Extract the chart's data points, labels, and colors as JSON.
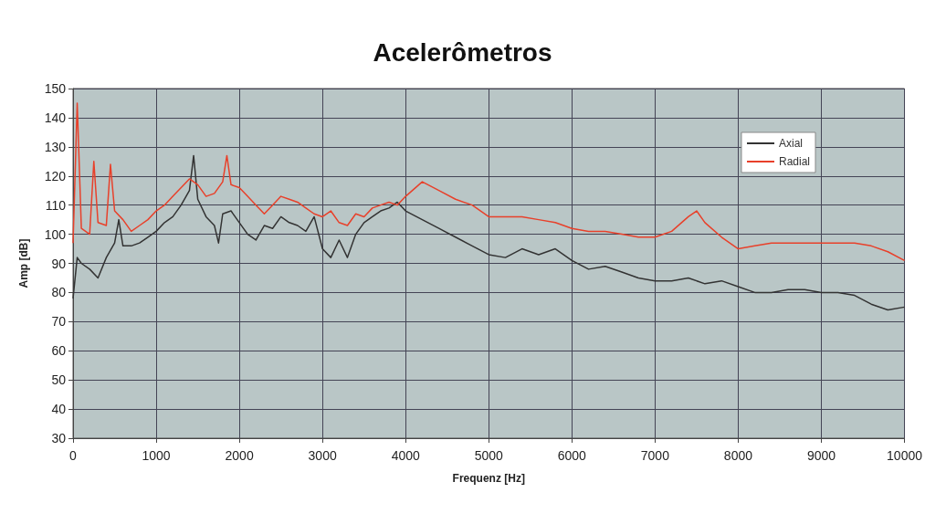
{
  "chart_data": {
    "type": "line",
    "title": "Acelerômetros",
    "xlabel": "Frequenz [Hz]",
    "ylabel": "Amp [dB]",
    "xlim": [
      0,
      10000
    ],
    "xticks": [
      0,
      1000,
      2000,
      3000,
      4000,
      5000,
      6000,
      7000,
      8000,
      9000,
      10000
    ],
    "ylim": [
      30,
      150
    ],
    "yticks": [
      30,
      40,
      50,
      60,
      70,
      80,
      90,
      100,
      110,
      120,
      130,
      140,
      150
    ],
    "grid": true,
    "legend": "top right",
    "marker": "none",
    "line_style": "solid",
    "series": [
      {
        "name": "Axial",
        "color": "#333333",
        "x": [
          0,
          50,
          100,
          200,
          300,
          400,
          500,
          550,
          600,
          700,
          800,
          900,
          1000,
          1100,
          1200,
          1300,
          1400,
          1450,
          1500,
          1600,
          1700,
          1750,
          1800,
          1900,
          2000,
          2100,
          2200,
          2300,
          2400,
          2500,
          2600,
          2700,
          2800,
          2900,
          3000,
          3100,
          3200,
          3300,
          3400,
          3500,
          3600,
          3700,
          3800,
          3900,
          4000,
          4200,
          4400,
          4600,
          4800,
          5000,
          5200,
          5400,
          5600,
          5800,
          6000,
          6200,
          6400,
          6600,
          6800,
          7000,
          7200,
          7400,
          7600,
          7800,
          8000,
          8200,
          8400,
          8600,
          8800,
          9000,
          9200,
          9400,
          9600,
          9800,
          10000
        ],
        "values": [
          78,
          92,
          90,
          88,
          85,
          92,
          97,
          105,
          96,
          96,
          97,
          99,
          101,
          104,
          106,
          110,
          115,
          127,
          112,
          106,
          103,
          97,
          107,
          108,
          104,
          100,
          98,
          103,
          102,
          106,
          104,
          103,
          101,
          106,
          95,
          92,
          98,
          92,
          100,
          104,
          106,
          108,
          109,
          111,
          108,
          105,
          102,
          99,
          96,
          93,
          92,
          95,
          93,
          95,
          91,
          88,
          89,
          87,
          85,
          84,
          84,
          85,
          83,
          84,
          82,
          80,
          80,
          81,
          81,
          80,
          80,
          79,
          76,
          74,
          75
        ]
      },
      {
        "name": "Radial",
        "color": "#e8402a",
        "x": [
          0,
          50,
          100,
          200,
          250,
          300,
          400,
          450,
          500,
          600,
          700,
          800,
          900,
          1000,
          1100,
          1200,
          1300,
          1400,
          1500,
          1600,
          1700,
          1800,
          1850,
          1900,
          2000,
          2100,
          2200,
          2300,
          2400,
          2500,
          2600,
          2700,
          2800,
          2900,
          3000,
          3100,
          3200,
          3300,
          3400,
          3500,
          3600,
          3700,
          3800,
          3900,
          4000,
          4200,
          4400,
          4600,
          4800,
          5000,
          5200,
          5400,
          5600,
          5800,
          6000,
          6200,
          6400,
          6600,
          6800,
          7000,
          7200,
          7400,
          7500,
          7600,
          7800,
          8000,
          8200,
          8400,
          8600,
          8800,
          9000,
          9200,
          9400,
          9600,
          9800,
          10000
        ],
        "values": [
          97,
          145,
          102,
          100,
          125,
          104,
          103,
          124,
          108,
          105,
          101,
          103,
          105,
          108,
          110,
          113,
          116,
          119,
          117,
          113,
          114,
          118,
          127,
          117,
          116,
          113,
          110,
          107,
          110,
          113,
          112,
          111,
          109,
          107,
          106,
          108,
          104,
          103,
          107,
          106,
          109,
          110,
          111,
          110,
          113,
          118,
          115,
          112,
          110,
          106,
          106,
          106,
          105,
          104,
          102,
          101,
          101,
          100,
          99,
          99,
          101,
          106,
          108,
          104,
          99,
          95,
          96,
          97,
          97,
          97,
          97,
          97,
          97,
          96,
          94,
          91
        ]
      }
    ]
  }
}
